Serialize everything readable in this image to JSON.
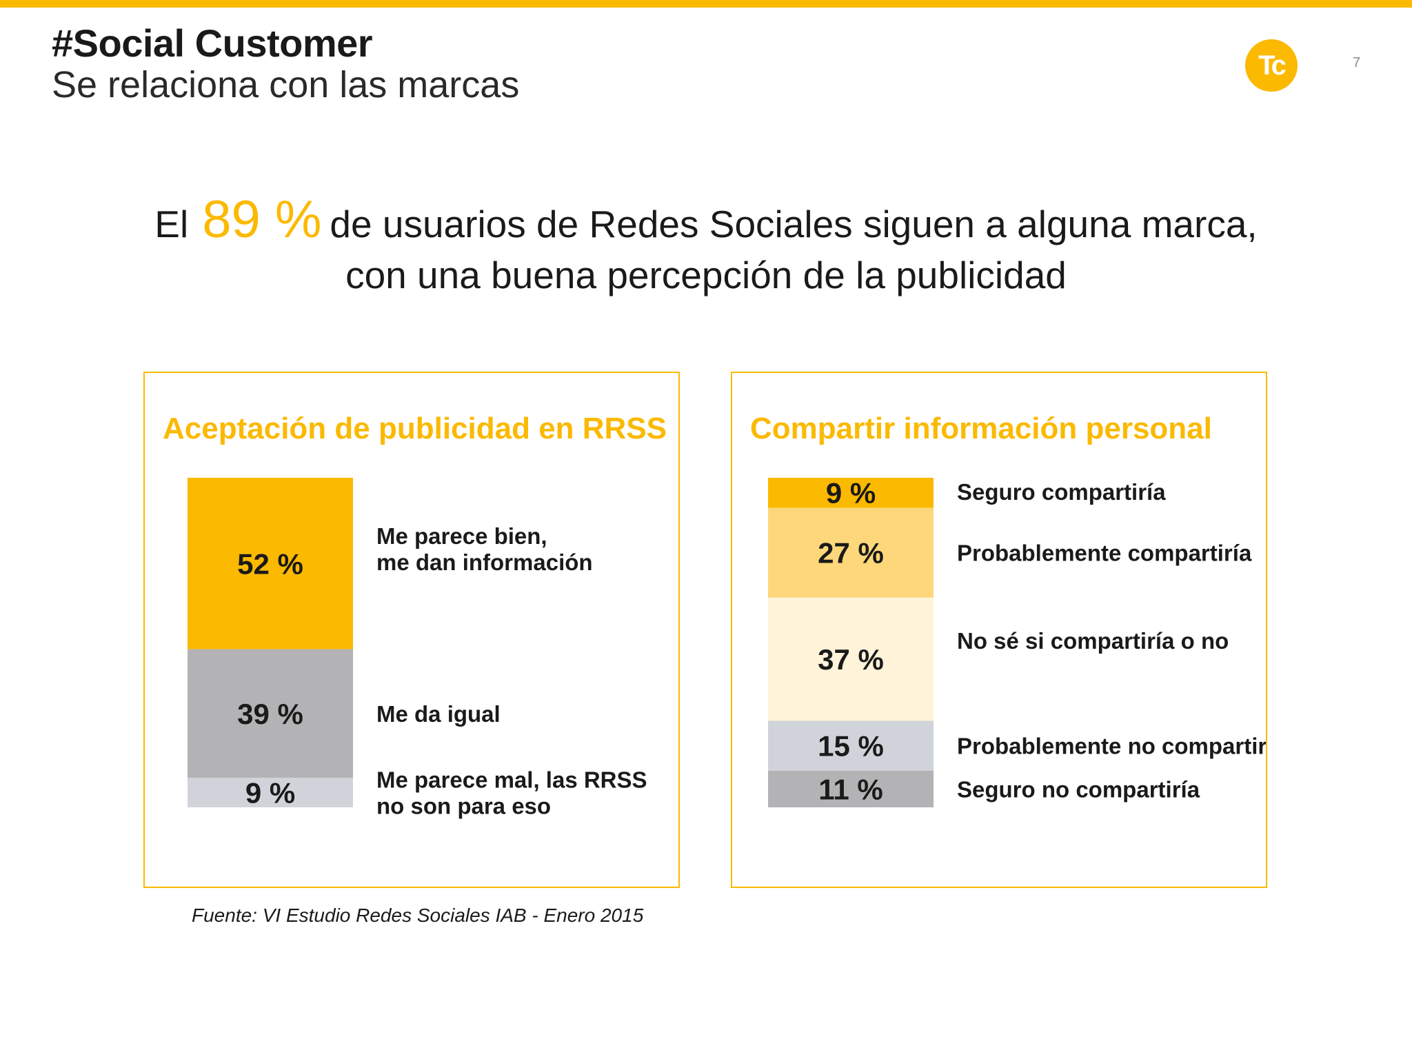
{
  "header": {
    "title": "#Social Customer",
    "subtitle": "Se relaciona con las marcas",
    "logo_text": "Tc",
    "page_number": "7"
  },
  "headline": {
    "lead": "El",
    "highlight": "89 %",
    "line1_rest": "de usuarios de Redes Sociales siguen a alguna marca,",
    "line2": "con una buena percepción de la publicidad"
  },
  "colors": {
    "accent": "#fbb900",
    "light_accent": "#fdd77a",
    "pale_accent": "#fff3d9",
    "light_gray": "#d1d3da",
    "mid_gray": "#b3b3b5"
  },
  "chart_data": [
    {
      "type": "bar",
      "stacked": true,
      "title": "Aceptación de publicidad en RRSS",
      "series": [
        {
          "value": 52,
          "value_label": "52 %",
          "label_lines": [
            "Me parece bien,",
            "me dan información"
          ],
          "color": "#fbb900"
        },
        {
          "value": 39,
          "value_label": "39 %",
          "label_lines": [
            "Me da igual"
          ],
          "color": "#b3b3b5"
        },
        {
          "value": 9,
          "value_label": "9 %",
          "label_lines": [
            "Me parece mal, las RRSS",
            "no son para eso"
          ],
          "color": "#d1d3da"
        }
      ]
    },
    {
      "type": "bar",
      "stacked": true,
      "title": "Compartir información personal",
      "series": [
        {
          "value": 9,
          "value_label": "9 %",
          "label_lines": [
            "Seguro compartiría"
          ],
          "color": "#fbb900"
        },
        {
          "value": 27,
          "value_label": "27 %",
          "label_lines": [
            "Probablemente compartiría"
          ],
          "color": "#fdd77a"
        },
        {
          "value": 37,
          "value_label": "37 %",
          "label_lines": [
            "No sé si compartiría o no"
          ],
          "color": "#fff3d9"
        },
        {
          "value": 15,
          "value_label": "15 %",
          "label_lines": [
            "Probablemente no compartiría"
          ],
          "color": "#d1d3da"
        },
        {
          "value": 11,
          "value_label": "11 %",
          "label_lines": [
            "Seguro no compartiría"
          ],
          "color": "#b3b3b5"
        }
      ]
    }
  ],
  "source": "Fuente: VI Estudio Redes Sociales IAB - Enero 2015"
}
